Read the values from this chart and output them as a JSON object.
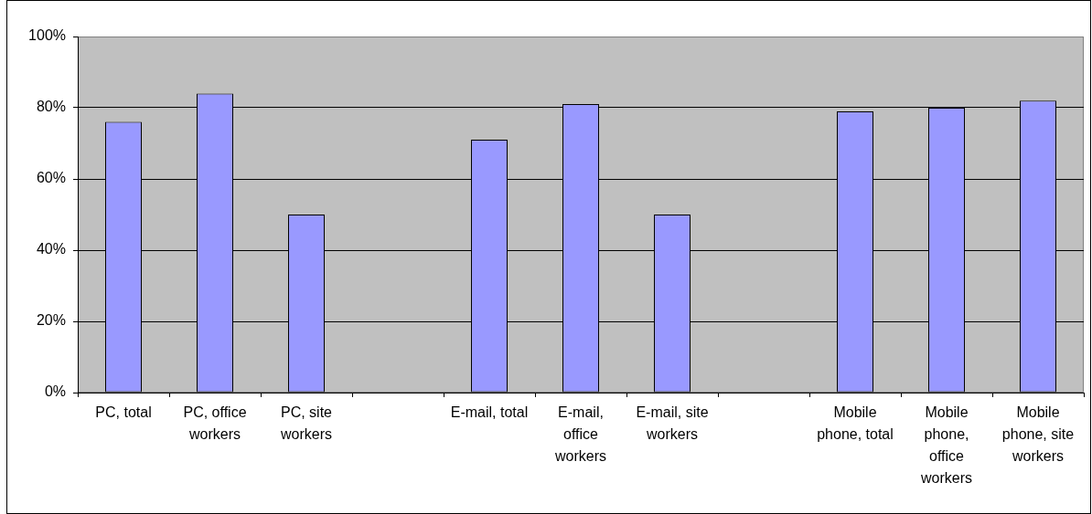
{
  "chart_data": {
    "type": "bar",
    "categories": [
      "PC, total",
      "PC, office workers",
      "PC, site workers",
      null,
      "E-mail, total",
      "E-mail, office workers",
      "E-mail, site workers",
      null,
      "Mobile phone, total",
      "Mobile phone, office workers",
      "Mobile phone, site workers"
    ],
    "values": [
      76,
      84,
      50,
      null,
      71,
      81,
      50,
      null,
      79,
      80,
      82
    ],
    "color": "#9999ff",
    "ylim": [
      0,
      100
    ],
    "yticks": [
      {
        "value": 0,
        "label": "0%"
      },
      {
        "value": 20,
        "label": "20%"
      },
      {
        "value": 40,
        "label": "40%"
      },
      {
        "value": 60,
        "label": "60%"
      },
      {
        "value": 80,
        "label": "80%"
      },
      {
        "value": 100,
        "label": "100%"
      }
    ],
    "grid": "y"
  }
}
